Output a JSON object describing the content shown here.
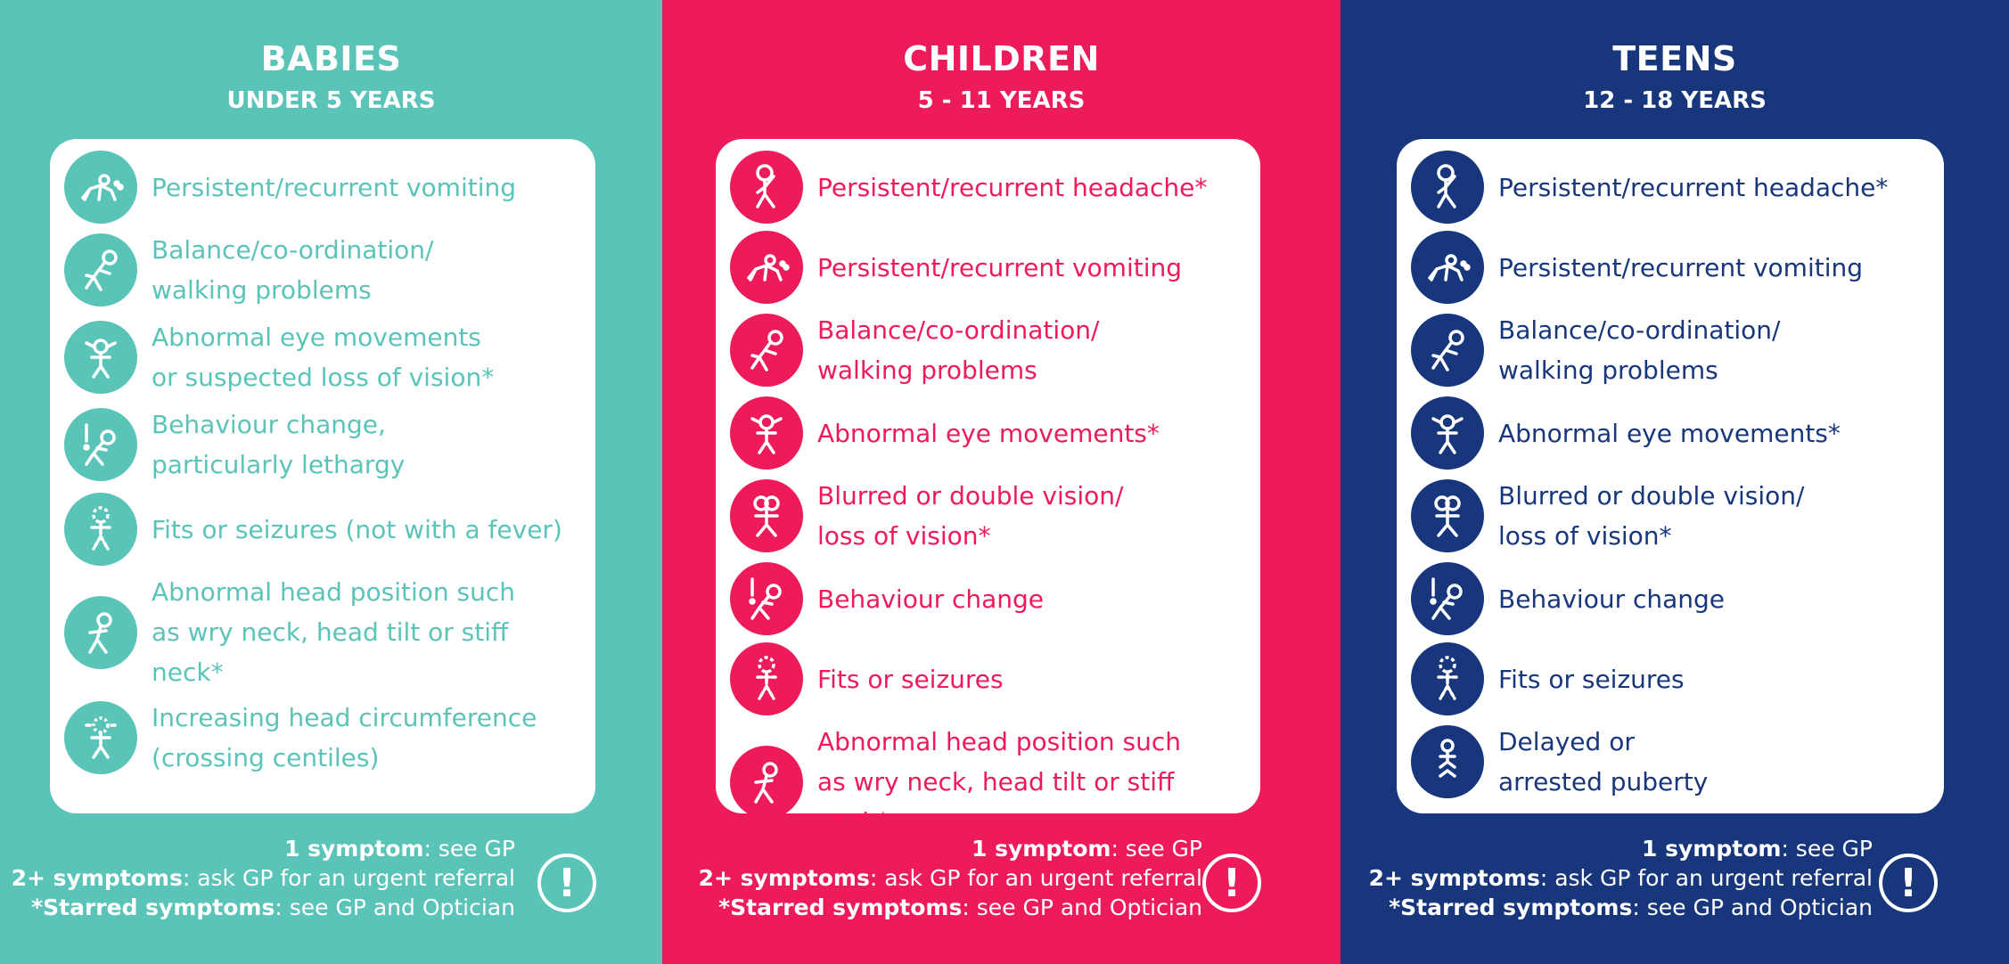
{
  "columns": [
    {
      "id": "babies",
      "title": "BABIES",
      "subtitle": "UNDER 5 YEARS",
      "color": "#5bc4b8",
      "symptoms": [
        {
          "icon": "crawling-vomit-icon",
          "lines": [
            "Persistent/recurrent vomiting"
          ]
        },
        {
          "icon": "falling-figure-icon",
          "lines": [
            "Balance/co-ordination/",
            "walking problems"
          ]
        },
        {
          "icon": "eye-movement-figure-icon",
          "lines": [
            "Abnormal eye movements",
            "or suspected loss of vision*"
          ]
        },
        {
          "icon": "behaviour-exclamation-figure-icon",
          "lines": [
            "Behaviour change,",
            "particularly lethargy"
          ]
        },
        {
          "icon": "seizure-figure-icon",
          "lines": [
            "Fits or seizures (not with a fever)"
          ]
        },
        {
          "icon": "head-tilt-figure-icon",
          "lines": [
            "Abnormal head position such",
            "as wry neck, head tilt or stiff neck*"
          ]
        },
        {
          "icon": "head-circumference-figure-icon",
          "lines": [
            "Increasing head circumference",
            "(crossing centiles)"
          ]
        }
      ]
    },
    {
      "id": "children",
      "title": "CHILDREN",
      "subtitle": "5 - 11 YEARS",
      "color": "#ee1b5b",
      "symptoms": [
        {
          "icon": "headache-figure-icon",
          "lines": [
            "Persistent/recurrent headache*"
          ]
        },
        {
          "icon": "crawling-vomit-icon",
          "lines": [
            "Persistent/recurrent vomiting"
          ]
        },
        {
          "icon": "falling-figure-icon",
          "lines": [
            "Balance/co-ordination/",
            "walking problems"
          ]
        },
        {
          "icon": "eye-movement-figure-icon",
          "lines": [
            "Abnormal eye movements*"
          ]
        },
        {
          "icon": "double-vision-figure-icon",
          "lines": [
            "Blurred or double vision/",
            "loss of vision*"
          ]
        },
        {
          "icon": "behaviour-exclamation-figure-icon",
          "lines": [
            "Behaviour change"
          ]
        },
        {
          "icon": "seizure-figure-icon",
          "lines": [
            "Fits or seizures"
          ]
        },
        {
          "icon": "head-tilt-figure-icon",
          "lines": [
            "Abnormal head position such",
            "as wry neck, head tilt or stiff neck*"
          ]
        }
      ]
    },
    {
      "id": "teens",
      "title": "TEENS",
      "subtitle": "12 - 18 YEARS",
      "color": "#17367c",
      "symptoms": [
        {
          "icon": "headache-figure-icon",
          "lines": [
            "Persistent/recurrent headache*"
          ]
        },
        {
          "icon": "crawling-vomit-icon",
          "lines": [
            "Persistent/recurrent vomiting"
          ]
        },
        {
          "icon": "falling-figure-icon",
          "lines": [
            "Balance/co-ordination/",
            "walking problems"
          ]
        },
        {
          "icon": "eye-movement-figure-icon",
          "lines": [
            "Abnormal eye movements*"
          ]
        },
        {
          "icon": "double-vision-figure-icon",
          "lines": [
            "Blurred or double vision/",
            "loss of vision*"
          ]
        },
        {
          "icon": "behaviour-exclamation-figure-icon",
          "lines": [
            "Behaviour change"
          ]
        },
        {
          "icon": "seizure-figure-icon",
          "lines": [
            "Fits or seizures"
          ]
        },
        {
          "icon": "puberty-figure-icon",
          "lines": [
            "Delayed or",
            "arrested puberty"
          ]
        }
      ]
    }
  ],
  "footer": {
    "one_symptom_bold": "1 symptom",
    "one_symptom_rest": ": see GP",
    "two_symptoms_bold": "2+ symptoms",
    "two_symptoms_rest": ": ask GP for an urgent referral",
    "starred_bold": "*Starred symptoms",
    "starred_rest": ": see GP and Optician",
    "alert_glyph": "!"
  }
}
